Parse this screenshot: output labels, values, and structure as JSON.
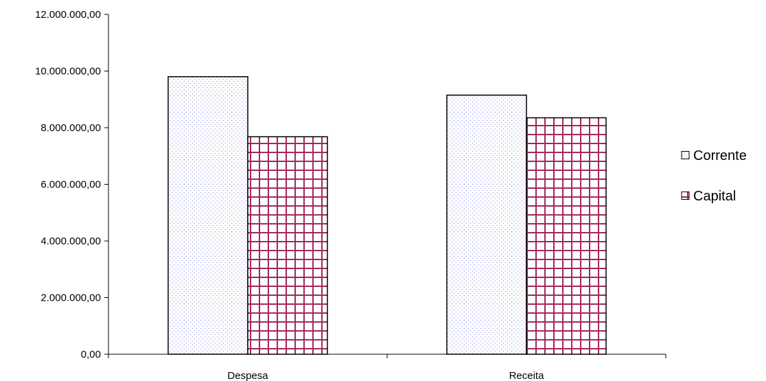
{
  "chart_data": {
    "type": "bar",
    "categories": [
      "Despesa",
      "Receita"
    ],
    "series": [
      {
        "name": "Corrente",
        "values": [
          9800000,
          9150000
        ],
        "pattern": "dots",
        "color": "#b8b8f0"
      },
      {
        "name": "Capital",
        "values": [
          7680000,
          8350000
        ],
        "pattern": "grid",
        "color": "#a0285a"
      }
    ],
    "ylim": [
      0,
      12000000
    ],
    "yticks": [
      0,
      2000000,
      4000000,
      6000000,
      8000000,
      10000000,
      12000000
    ],
    "ytick_labels": [
      "0,00",
      "2.000.000,00",
      "4.000.000,00",
      "6.000.000,00",
      "8.000.000,00",
      "10.000.000,00",
      "12.000.000,00"
    ],
    "title": "",
    "xlabel": "",
    "ylabel": "",
    "grid": false,
    "legend_position": "right"
  }
}
